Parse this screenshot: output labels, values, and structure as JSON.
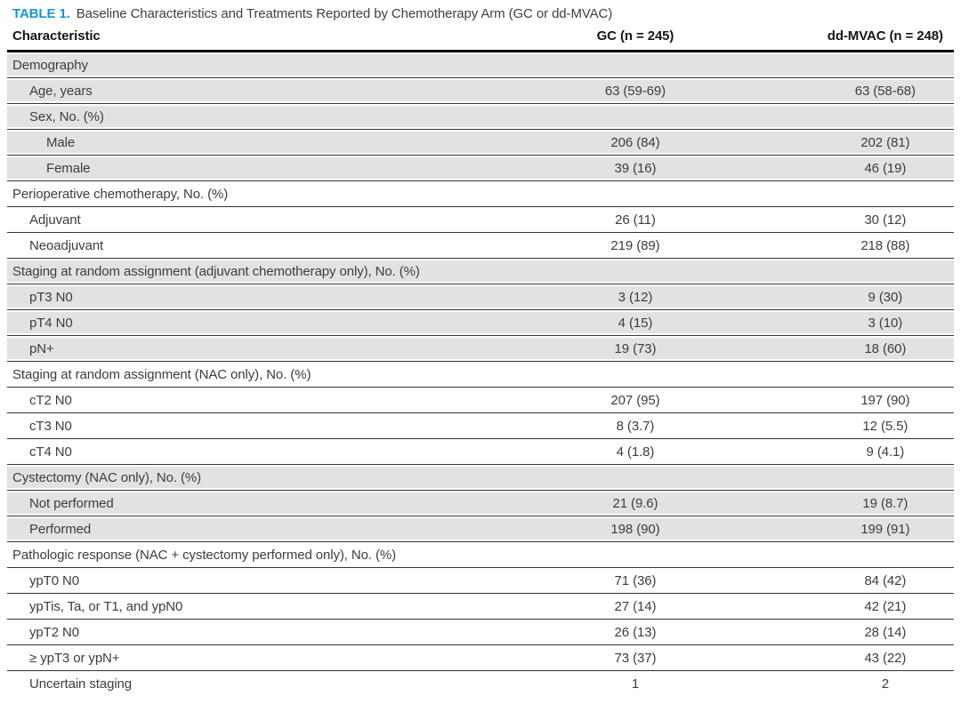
{
  "caption": {
    "label": "TABLE 1.",
    "text": "Baseline Characteristics and Treatments Reported by Chemotherapy Arm (GC or dd-MVAC)"
  },
  "columns": [
    "Characteristic",
    "GC (n = 245)",
    "dd-MVAC (n = 248)"
  ],
  "colors": {
    "accent": "#1497d4",
    "row_shade": "#e2e2e2",
    "rule": "#343434",
    "header_rule": "#000000"
  },
  "rows": [
    {
      "label": "Demography",
      "indent": 0,
      "gc": "",
      "ddmvac": "",
      "shaded": true
    },
    {
      "label": "Age, years",
      "indent": 1,
      "gc": "63 (59-69)",
      "ddmvac": "63 (58-68)",
      "shaded": true
    },
    {
      "label": "Sex, No. (%)",
      "indent": 1,
      "gc": "",
      "ddmvac": "",
      "shaded": true
    },
    {
      "label": "Male",
      "indent": 2,
      "gc": "206 (84)",
      "ddmvac": "202 (81)",
      "shaded": true
    },
    {
      "label": "Female",
      "indent": 2,
      "gc": "39 (16)",
      "ddmvac": "46 (19)",
      "shaded": true
    },
    {
      "label": "Perioperative chemotherapy, No. (%)",
      "indent": 0,
      "gc": "",
      "ddmvac": "",
      "shaded": false
    },
    {
      "label": "Adjuvant",
      "indent": 1,
      "gc": "26 (11)",
      "ddmvac": "30 (12)",
      "shaded": false
    },
    {
      "label": "Neoadjuvant",
      "indent": 1,
      "gc": "219 (89)",
      "ddmvac": "218 (88)",
      "shaded": false
    },
    {
      "label": "Staging at random assignment (adjuvant chemotherapy only), No. (%)",
      "indent": 0,
      "gc": "",
      "ddmvac": "",
      "shaded": true
    },
    {
      "label": "pT3 N0",
      "indent": 1,
      "gc": "3 (12)",
      "ddmvac": "9 (30)",
      "shaded": true
    },
    {
      "label": "pT4 N0",
      "indent": 1,
      "gc": "4 (15)",
      "ddmvac": "3 (10)",
      "shaded": true
    },
    {
      "label": "pN+",
      "indent": 1,
      "gc": "19 (73)",
      "ddmvac": "18 (60)",
      "shaded": true
    },
    {
      "label": "Staging at random assignment (NAC only), No. (%)",
      "indent": 0,
      "gc": "",
      "ddmvac": "",
      "shaded": false
    },
    {
      "label": "cT2 N0",
      "indent": 1,
      "gc": "207 (95)",
      "ddmvac": "197 (90)",
      "shaded": false
    },
    {
      "label": "cT3 N0",
      "indent": 1,
      "gc": "8 (3.7)",
      "ddmvac": "12 (5.5)",
      "shaded": false
    },
    {
      "label": "cT4 N0",
      "indent": 1,
      "gc": "4 (1.8)",
      "ddmvac": "9 (4.1)",
      "shaded": false
    },
    {
      "label": "Cystectomy (NAC only), No. (%)",
      "indent": 0,
      "gc": "",
      "ddmvac": "",
      "shaded": true
    },
    {
      "label": "Not performed",
      "indent": 1,
      "gc": "21 (9.6)",
      "ddmvac": "19 (8.7)",
      "shaded": true
    },
    {
      "label": "Performed",
      "indent": 1,
      "gc": "198 (90)",
      "ddmvac": "199 (91)",
      "shaded": true
    },
    {
      "label": "Pathologic response (NAC + cystectomy performed only), No. (%)",
      "indent": 0,
      "gc": "",
      "ddmvac": "",
      "shaded": false
    },
    {
      "label": "ypT0 N0",
      "indent": 1,
      "gc": "71 (36)",
      "ddmvac": "84 (42)",
      "shaded": false
    },
    {
      "label": "ypTis, Ta, or T1, and ypN0",
      "indent": 1,
      "gc": "27 (14)",
      "ddmvac": "42 (21)",
      "shaded": false
    },
    {
      "label": "ypT2 N0",
      "indent": 1,
      "gc": "26 (13)",
      "ddmvac": "28 (14)",
      "shaded": false
    },
    {
      "label": "≥ ypT3 or ypN+",
      "indent": 1,
      "gc": "73 (37)",
      "ddmvac": "43 (22)",
      "shaded": false
    },
    {
      "label": "Uncertain staging",
      "indent": 1,
      "gc": "1",
      "ddmvac": "2",
      "shaded": false
    }
  ]
}
